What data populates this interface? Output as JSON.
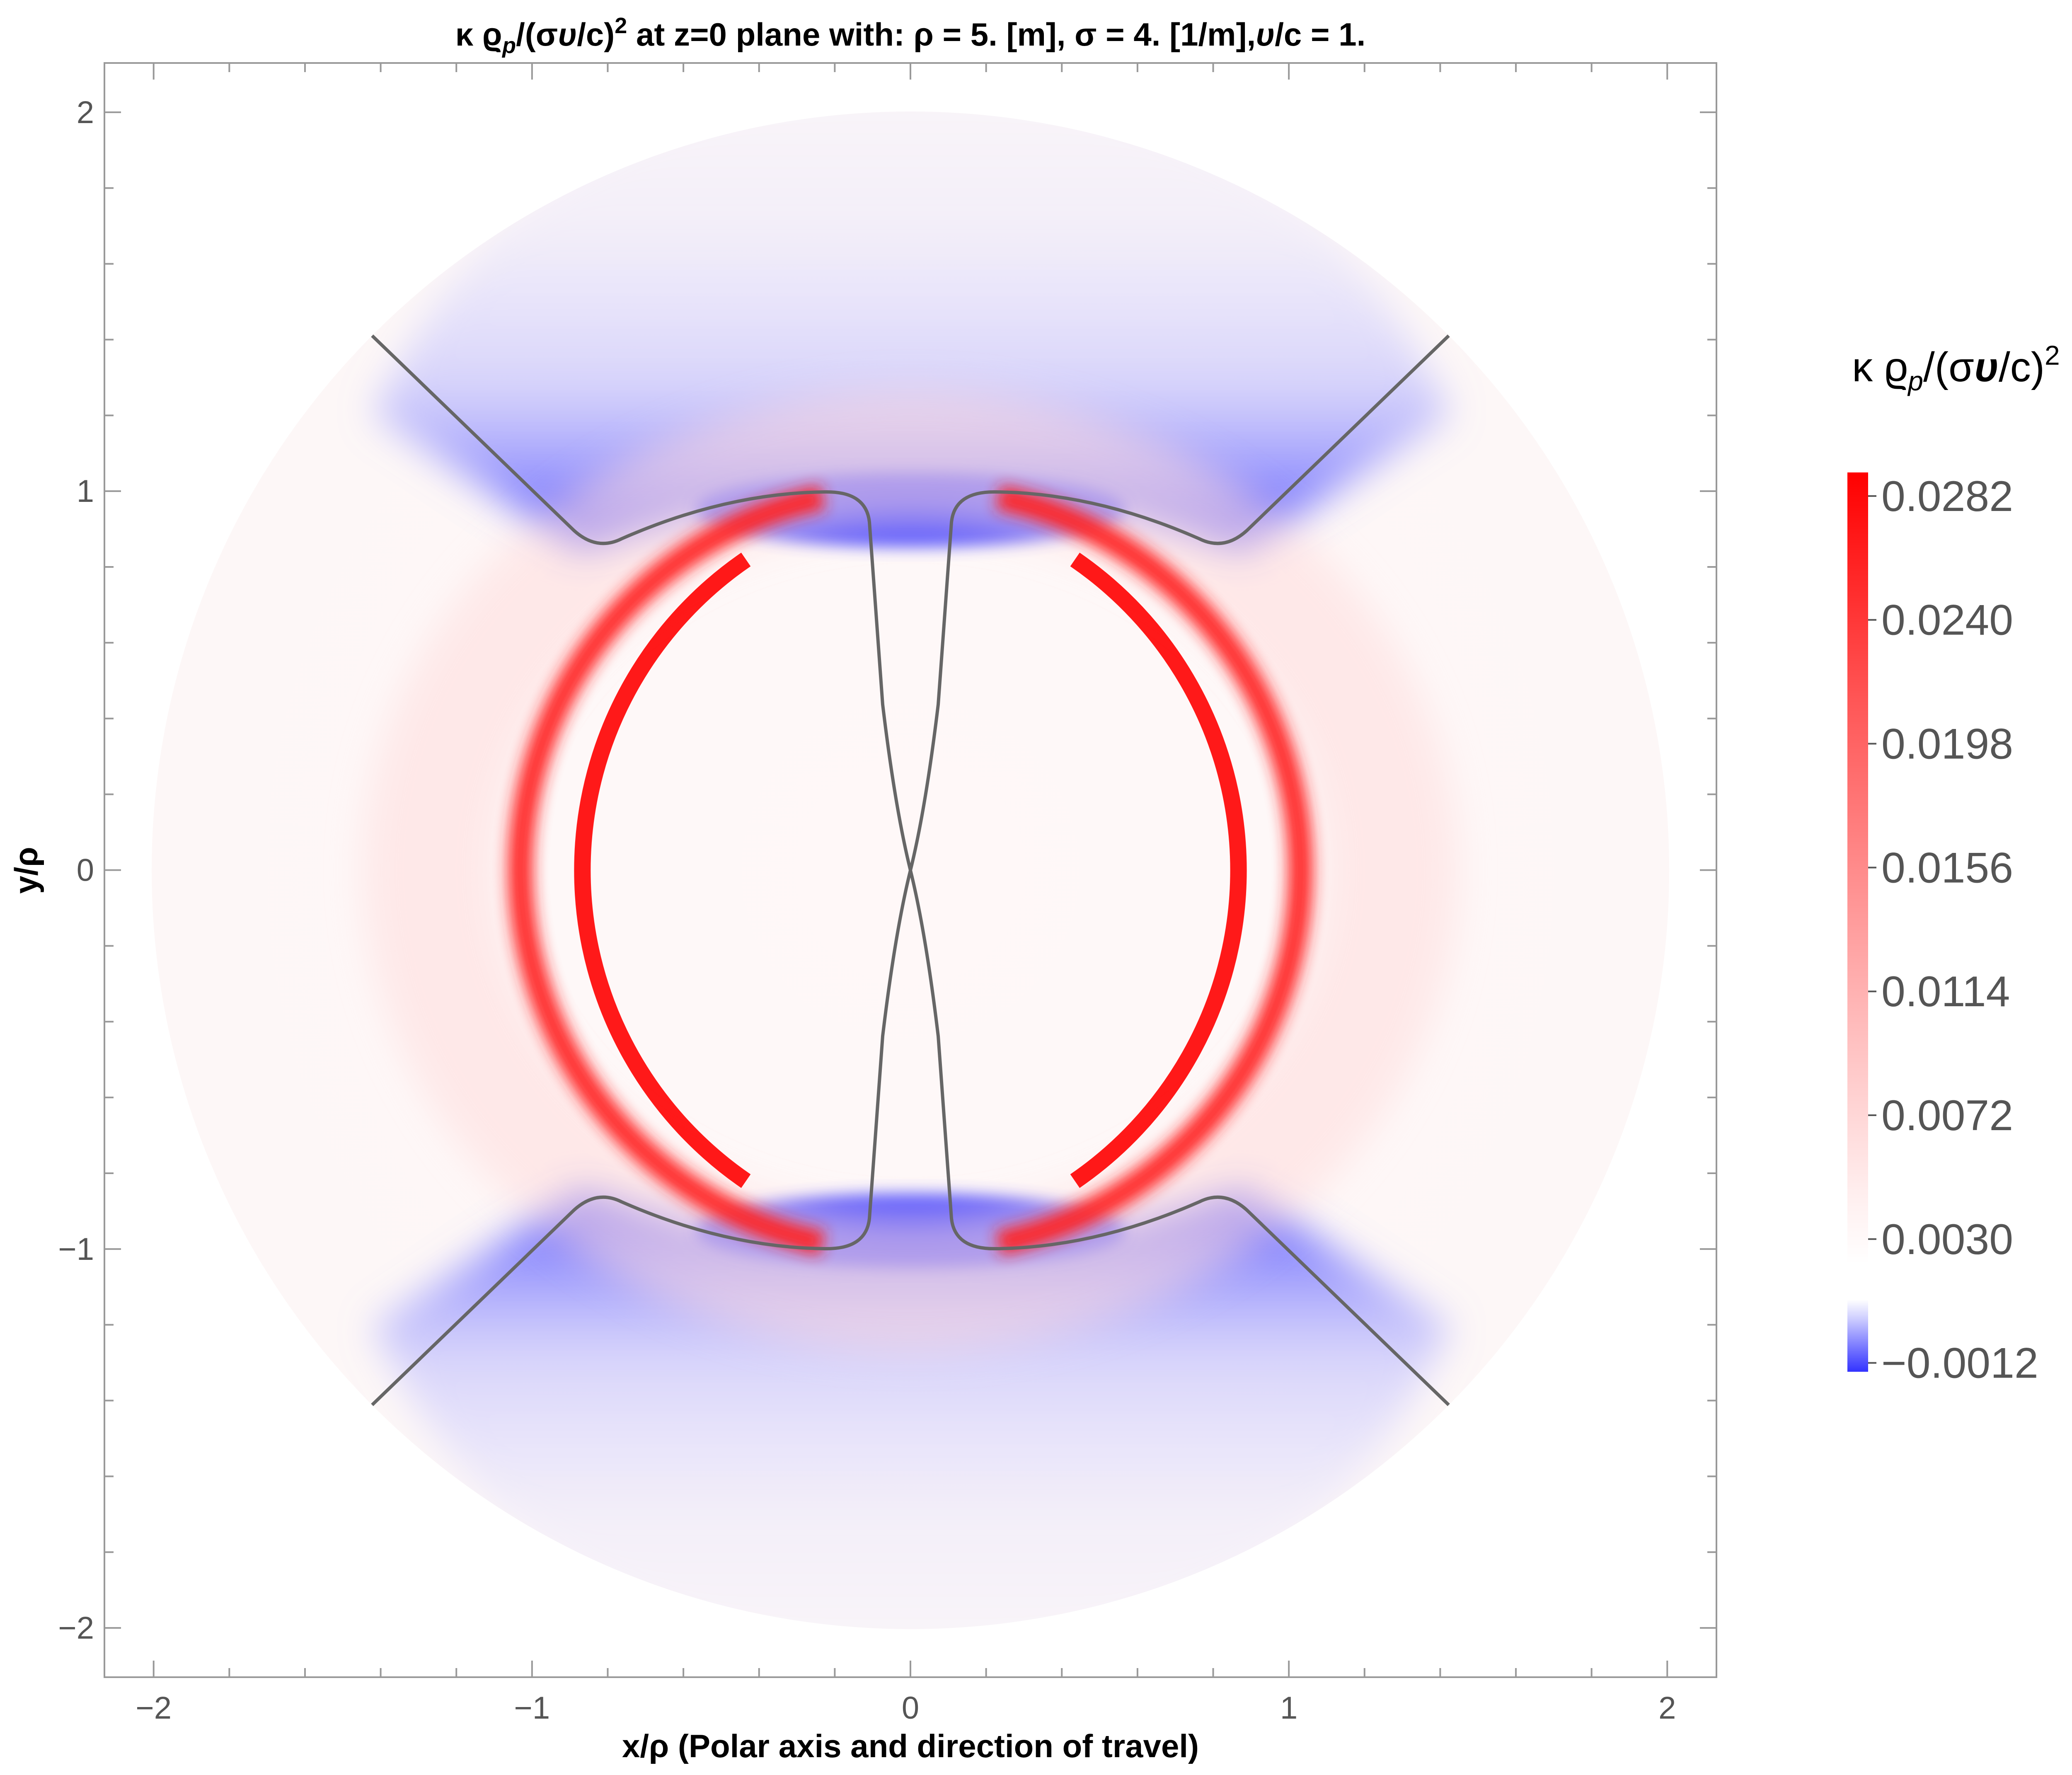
{
  "chart_data": {
    "type": "heatmap",
    "title_main": "κ ϱ",
    "title_sub": "p",
    "title_mid": "/(σ",
    "title_v": "υ",
    "title_c": "/c)",
    "title_sup": "2",
    "title_rest": " at z=0 plane with: ρ = 5. [m], σ = 4. [1/m],",
    "title_v2": "υ",
    "title_end": "/c = 1.",
    "xlabel_main": "x/ρ",
    "xlabel_rest": "  (Polar axis and direction of travel)",
    "ylabel": "y/ρ",
    "xlim": [
      -2.13,
      2.13
    ],
    "ylim": [
      -2.13,
      2.13
    ],
    "x_ticks": [
      {
        "value": -2,
        "label": "−2"
      },
      {
        "value": -1,
        "label": "−1"
      },
      {
        "value": 0,
        "label": "0"
      },
      {
        "value": 1,
        "label": "1"
      },
      {
        "value": 2,
        "label": "2"
      }
    ],
    "y_ticks": [
      {
        "value": 2,
        "label": "2"
      },
      {
        "value": 1,
        "label": "1"
      },
      {
        "value": 0,
        "label": "0"
      },
      {
        "value": -1,
        "label": "−1"
      },
      {
        "value": -2,
        "label": "−2"
      }
    ],
    "domain_radius": 2.0,
    "red_ring_radius": 1.0,
    "blue_lobe_center_y": 1.08,
    "colorbar": {
      "title_main": "κ ϱ",
      "title_sub": "p",
      "title_mid": "/(σ",
      "title_v": "υ",
      "title_c": "/c)",
      "title_sup": "2",
      "min": -0.0015,
      "max": 0.029,
      "ticks": [
        {
          "value": 0.0282,
          "label": "0.0282"
        },
        {
          "value": 0.024,
          "label": "0.0240"
        },
        {
          "value": 0.0198,
          "label": "0.0198"
        },
        {
          "value": 0.0156,
          "label": "0.0156"
        },
        {
          "value": 0.0114,
          "label": "0.0114"
        },
        {
          "value": 0.0072,
          "label": "0.0072"
        },
        {
          "value": 0.003,
          "label": "0.0030"
        },
        {
          "value": -0.0012,
          "label": "−0.0012"
        }
      ],
      "color_positive": "#ff0000",
      "color_negative": "#3333ff",
      "color_zero": "#ffffff"
    },
    "contour_color": "#666666",
    "grid": false
  }
}
